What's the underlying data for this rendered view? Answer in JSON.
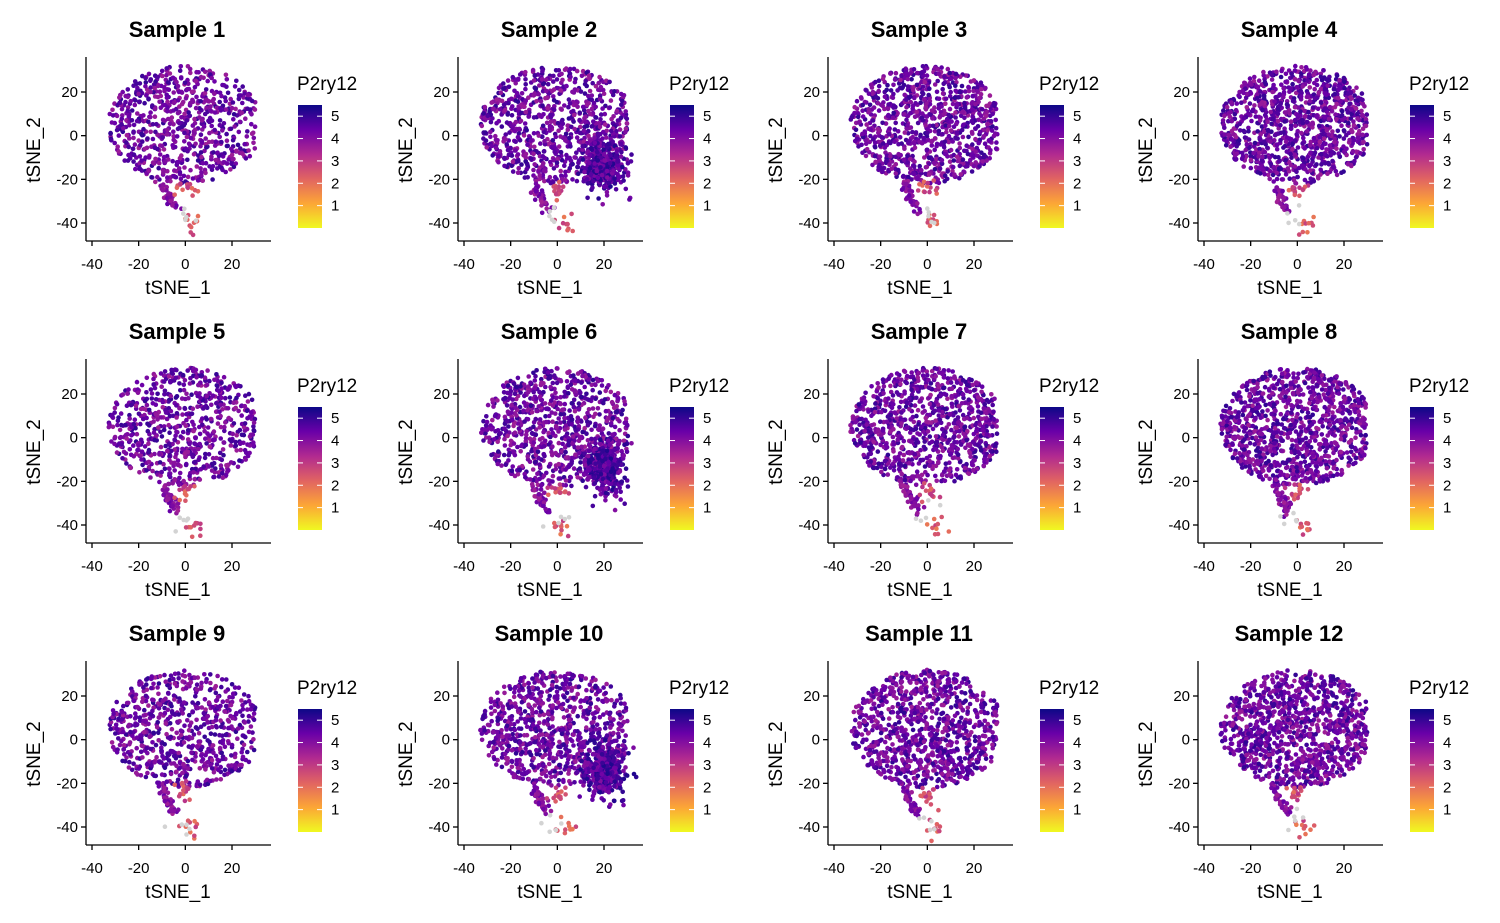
{
  "chart_data": {
    "type": "scatter",
    "xlabel": "tSNE_1",
    "ylabel": "tSNE_2",
    "xlim": [
      -40,
      35
    ],
    "ylim": [
      -47,
      36
    ],
    "xticks": [
      -40,
      -20,
      0,
      20
    ],
    "yticks": [
      20,
      0,
      -20,
      -40
    ],
    "xtick_labels": [
      "-40",
      "-20",
      "0",
      "20"
    ],
    "ytick_labels": [
      "20",
      "0",
      "-20",
      "-40"
    ],
    "grid": false,
    "legend": {
      "title": "P2ry12",
      "ticks": [
        5,
        4,
        3,
        2,
        1
      ],
      "tick_labels": [
        "5",
        "4",
        "3",
        "2",
        "1"
      ],
      "range": [
        0,
        5.5
      ],
      "placement": "right",
      "colors": [
        "#f0f921",
        "#fca636",
        "#e16462",
        "#b12a90",
        "#6a00a8",
        "#0d0887"
      ]
    },
    "point_colors": {
      "zero": "#d3d3d3"
    },
    "panels": [
      {
        "title": "Sample 1"
      },
      {
        "title": "Sample 2"
      },
      {
        "title": "Sample 3"
      },
      {
        "title": "Sample 4"
      },
      {
        "title": "Sample 5"
      },
      {
        "title": "Sample 6"
      },
      {
        "title": "Sample 7"
      },
      {
        "title": "Sample 8"
      },
      {
        "title": "Sample 9"
      },
      {
        "title": "Sample 10"
      },
      {
        "title": "Sample 11"
      },
      {
        "title": "Sample 12"
      }
    ]
  }
}
